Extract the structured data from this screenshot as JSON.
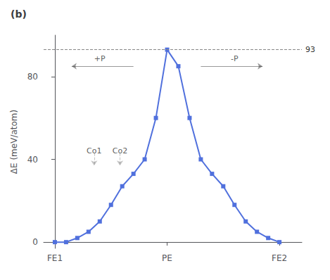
{
  "chart_data": {
    "type": "line",
    "title": "(b)",
    "x": [
      0,
      1,
      2,
      3,
      4,
      5,
      6,
      7,
      8,
      9,
      10,
      11,
      12,
      13,
      14,
      15,
      16,
      17,
      18,
      19,
      20
    ],
    "values": [
      0,
      0,
      2,
      5,
      10,
      18,
      27,
      33,
      40,
      60,
      93,
      85,
      60,
      40,
      33,
      27,
      18,
      10,
      5,
      2,
      0
    ],
    "marker": "square",
    "y_label": "ΔE (meV/atom)",
    "xlim": [
      -1,
      22
    ],
    "xticks": [
      {
        "value": 0,
        "label": "FE1"
      },
      {
        "value": 10,
        "label": "PE"
      },
      {
        "value": 20,
        "label": "FE2"
      }
    ],
    "ylim": [
      -3,
      100
    ],
    "yticks": [
      0,
      40,
      80
    ],
    "grid": false,
    "reference_lines": [
      {
        "y": 93,
        "label": "93",
        "line_style": "dashed"
      }
    ],
    "annotations": [
      {
        "text": "+P",
        "x": 4.0,
        "y": 88.5,
        "arrow_from": [
          7,
          85
        ],
        "arrow_to": [
          1.5,
          85
        ],
        "line_style": "solid"
      },
      {
        "text": "-P",
        "x": 16.0,
        "y": 88.5,
        "arrow_from": [
          13,
          85
        ],
        "arrow_to": [
          18.5,
          85
        ],
        "line_style": "solid"
      },
      {
        "text": "Co1",
        "x": 3.5,
        "y": 44,
        "arrow_from": [
          3.5,
          43
        ],
        "arrow_to": [
          3.5,
          37
        ],
        "line_style": "dashed"
      },
      {
        "text": "Co2",
        "x": 5.8,
        "y": 44,
        "arrow_from": [
          5.8,
          43
        ],
        "arrow_to": [
          5.8,
          37
        ],
        "line_style": "dashed"
      }
    ]
  }
}
